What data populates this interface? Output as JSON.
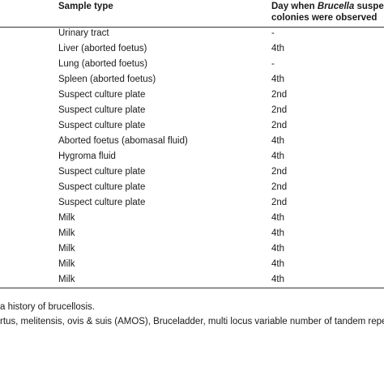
{
  "table": {
    "header": [
      "Sample type",
      [
        "Day when ",
        "Brucella",
        " suspect",
        "colonies were observed"
      ]
    ],
    "rows": [
      [
        "Urinary tract",
        "-"
      ],
      [
        "Liver (aborted foetus)",
        "4th"
      ],
      [
        "Lung (aborted foetus)",
        "-"
      ],
      [
        "Spleen (aborted foetus)",
        "4th"
      ],
      [
        "Suspect culture plate",
        "2nd"
      ],
      [
        "Suspect culture plate",
        "2nd"
      ],
      [
        "Suspect culture plate",
        "2nd"
      ],
      [
        "Aborted foetus (abomasal fluid)",
        "4th"
      ],
      [
        "Hygroma fluid",
        "4th"
      ],
      [
        "Suspect culture plate",
        "2nd"
      ],
      [
        "Suspect culture plate",
        "2nd"
      ],
      [
        "Suspect culture plate",
        "2nd"
      ],
      [
        "Milk",
        "4th"
      ],
      [
        "Milk",
        "4th"
      ],
      [
        "Milk",
        "4th"
      ],
      [
        "Milk",
        "4th"
      ],
      [
        "Milk",
        "4th"
      ]
    ]
  },
  "footnotes": [
    "a history of brucellosis.",
    "rtus, melitensis, ovis & suis (AMOS), Bruceladder, multi locus variable number of tandem repeat a"
  ]
}
